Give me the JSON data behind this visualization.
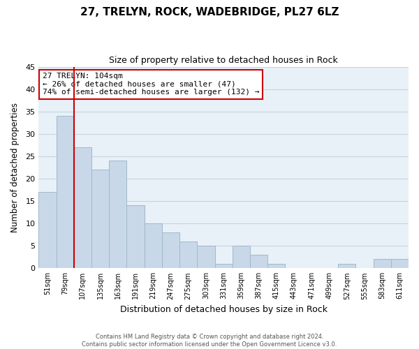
{
  "title": "27, TRELYN, ROCK, WADEBRIDGE, PL27 6LZ",
  "subtitle": "Size of property relative to detached houses in Rock",
  "xlabel": "Distribution of detached houses by size in Rock",
  "ylabel": "Number of detached properties",
  "bar_color": "#c8d8e8",
  "bar_edge_color": "#a0b8cc",
  "categories": [
    "51sqm",
    "79sqm",
    "107sqm",
    "135sqm",
    "163sqm",
    "191sqm",
    "219sqm",
    "247sqm",
    "275sqm",
    "303sqm",
    "331sqm",
    "359sqm",
    "387sqm",
    "415sqm",
    "443sqm",
    "471sqm",
    "499sqm",
    "527sqm",
    "555sqm",
    "583sqm",
    "611sqm"
  ],
  "values": [
    17,
    34,
    27,
    22,
    24,
    14,
    10,
    8,
    6,
    5,
    1,
    5,
    3,
    1,
    0,
    0,
    0,
    1,
    0,
    2,
    2
  ],
  "ylim": [
    0,
    45
  ],
  "yticks": [
    0,
    5,
    10,
    15,
    20,
    25,
    30,
    35,
    40,
    45
  ],
  "property_line_index": 1.5,
  "annotation_title": "27 TRELYN: 104sqm",
  "annotation_line1": "← 26% of detached houses are smaller (47)",
  "annotation_line2": "74% of semi-detached houses are larger (132) →",
  "annotation_box_color": "#ffffff",
  "annotation_box_edge": "#cc0000",
  "property_line_color": "#cc0000",
  "footer_line1": "Contains HM Land Registry data © Crown copyright and database right 2024.",
  "footer_line2": "Contains public sector information licensed under the Open Government Licence v3.0.",
  "background_color": "#ffffff",
  "plot_bg_color": "#e8f0f8",
  "grid_color": "#c8d4de"
}
